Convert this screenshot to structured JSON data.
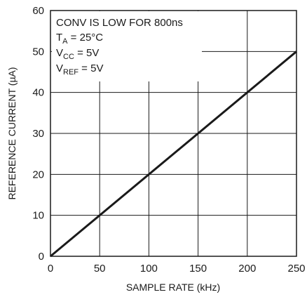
{
  "chart_data": {
    "type": "line",
    "title": "",
    "xlabel": "SAMPLE RATE (kHz)",
    "ylabel": "REFERENCE CURRENT (µA)",
    "xlim": [
      0,
      250
    ],
    "ylim": [
      0,
      60
    ],
    "x_ticks": [
      "0",
      "50",
      "100",
      "150",
      "200",
      "250"
    ],
    "y_ticks": [
      "0",
      "10",
      "20",
      "30",
      "40",
      "50",
      "60"
    ],
    "grid": true,
    "series": [
      {
        "x": [
          0,
          250
        ],
        "y": [
          0,
          50
        ]
      }
    ],
    "annotations": {
      "line1": "CONV IS LOW FOR 800ns",
      "ta_main": "T",
      "ta_sub": "A",
      "ta_value": " = 25°C",
      "vcc_main": "V",
      "vcc_sub": "CC",
      "vcc_value": " = 5V",
      "vref_main": "V",
      "vref_sub": "REF",
      "vref_value": " = 5V"
    },
    "colors": {
      "line": "#1a1a1a",
      "grid": "#1a1a1a"
    }
  }
}
